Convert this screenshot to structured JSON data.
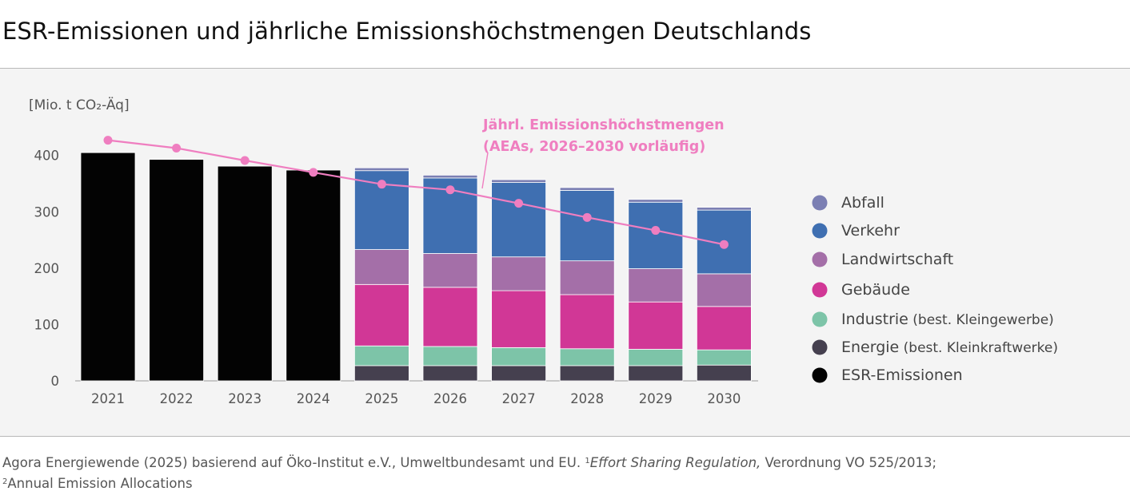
{
  "title": "ESR-Emissionen und jährliche Emissionshöchstmengen Deutschlands",
  "footer": {
    "part1": "Agora Energiewende (2025) basierend auf Öko-Institut e.V., Umweltbundesamt und EU. ",
    "sup1": "1",
    "italic": "Effort Sharing Regulation,",
    "part2": " Verordnung VO 525/2013;",
    "sup2": "2",
    "part3": "Annual Emission Allocations"
  },
  "chart_data": {
    "type": "bar",
    "stacked": true,
    "ylabel": "[Mio. t CO₂-Äq]",
    "ylim": [
      0,
      430
    ],
    "yticks": [
      0,
      100,
      200,
      300,
      400
    ],
    "categories": [
      "2021",
      "2022",
      "2023",
      "2024",
      "2025",
      "2026",
      "2027",
      "2028",
      "2029",
      "2030"
    ],
    "series": [
      {
        "name": "ESR-Emissionen",
        "color": "#030303",
        "values": [
          405,
          393,
          381,
          374,
          null,
          null,
          null,
          null,
          null,
          null
        ]
      },
      {
        "name": "Energie (best. Kleinkraftwerke)",
        "color": "#45404f",
        "values": [
          null,
          null,
          null,
          null,
          27,
          27,
          27,
          27,
          27,
          28
        ]
      },
      {
        "name": "Industrie (best. Kleingewerbe)",
        "color": "#7dc4a8",
        "values": [
          null,
          null,
          null,
          null,
          35,
          34,
          32,
          30,
          29,
          27
        ]
      },
      {
        "name": "Gebäude",
        "color": "#d13796",
        "values": [
          null,
          null,
          null,
          null,
          109,
          105,
          101,
          96,
          84,
          77
        ]
      },
      {
        "name": "Landwirtschaft",
        "color": "#a46fa8",
        "values": [
          null,
          null,
          null,
          null,
          62,
          60,
          60,
          60,
          59,
          58
        ]
      },
      {
        "name": "Verkehr",
        "color": "#3f6fb1",
        "values": [
          null,
          null,
          null,
          null,
          140,
          134,
          132,
          125,
          118,
          113
        ]
      },
      {
        "name": "Abfall",
        "color": "#7b7fb3",
        "values": [
          null,
          null,
          null,
          null,
          5,
          5,
          5,
          5,
          5,
          5
        ]
      }
    ],
    "line": {
      "name": "Jährl. Emissionshöchstmengen",
      "label_lines": [
        "Jährl. Emissionshöchstmengen",
        "(AEAs, 2026–2030 vorläufig)"
      ],
      "color": "#ef7ec0",
      "values": [
        427,
        413,
        391,
        370,
        349,
        339,
        315,
        290,
        267,
        242
      ]
    },
    "legend": {
      "placement": "right",
      "items": [
        {
          "label": "Abfall",
          "note": "",
          "color": "#7b7fb3"
        },
        {
          "label": "Verkehr",
          "note": "",
          "color": "#3f6fb1"
        },
        {
          "label": "Landwirtschaft",
          "note": "",
          "color": "#a46fa8"
        },
        {
          "label": "Gebäude",
          "note": "",
          "color": "#d13796"
        },
        {
          "label": "Industrie",
          "note": " (best. Kleingewerbe)",
          "color": "#7dc4a8"
        },
        {
          "label": "Energie",
          "note": " (best. Kleinkraftwerke)",
          "color": "#45404f"
        },
        {
          "label": "ESR-Emissionen",
          "note": "",
          "color": "#030303"
        }
      ]
    }
  }
}
